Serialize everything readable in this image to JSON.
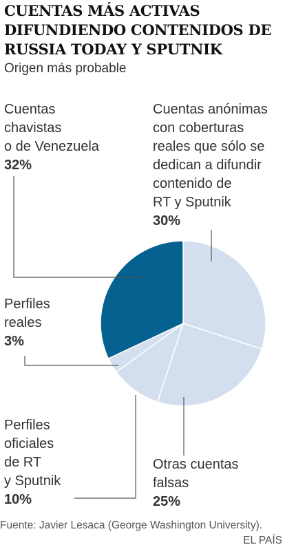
{
  "title": "CUENTAS MÁS ACTIVAS DIFUNDIENDO CONTENIDOS DE RUSSIA TODAY  Y SPUTNIK",
  "subtitle": "Origen más probable",
  "source": "Fuente: Javier Lesaca (George Washington University).",
  "brand": "EL PAÍS",
  "colors": {
    "highlight": "#05618f",
    "other": "#d3dfee",
    "stroke": "#ffffff",
    "leader": "#555555"
  },
  "chart_data": {
    "type": "pie",
    "slices": [
      {
        "label": "Cuentas anónimas con coberturas reales que sólo se dedican a difundir contenido de RT y Sputnik",
        "value": 30,
        "value_label": "30%",
        "color": "#d3dfee"
      },
      {
        "label": "Otras cuentas falsas",
        "value": 25,
        "value_label": "25%",
        "color": "#d3dfee"
      },
      {
        "label": "Perfiles oficiales de RT y Sputnik",
        "value": 10,
        "value_label": "10%",
        "color": "#d3dfee"
      },
      {
        "label": "Perfiles reales",
        "value": 3,
        "value_label": "3%",
        "color": "#d3dfee"
      },
      {
        "label": "Cuentas chavistas o de Venezuela",
        "value": 32,
        "value_label": "32%",
        "color": "#05618f"
      }
    ],
    "start_angle": "12 o'clock, clockwise"
  },
  "labels": {
    "chavistas": {
      "name": "Cuentas\nchavistas\no de Venezuela",
      "pct": "32%"
    },
    "anonimas": {
      "name": "Cuentas anónimas\ncon coberturas\nreales que sólo se\ndedican a difundir\ncontenido de\nRT y Sputnik",
      "pct": "30%"
    },
    "reales": {
      "name": "Perfiles\nreales",
      "pct": "3%"
    },
    "oficiales": {
      "name": "Perfiles\noficiales\nde RT\ny Sputnik",
      "pct": "10%"
    },
    "falsas": {
      "name": "Otras cuentas\nfalsas",
      "pct": "25%"
    }
  }
}
